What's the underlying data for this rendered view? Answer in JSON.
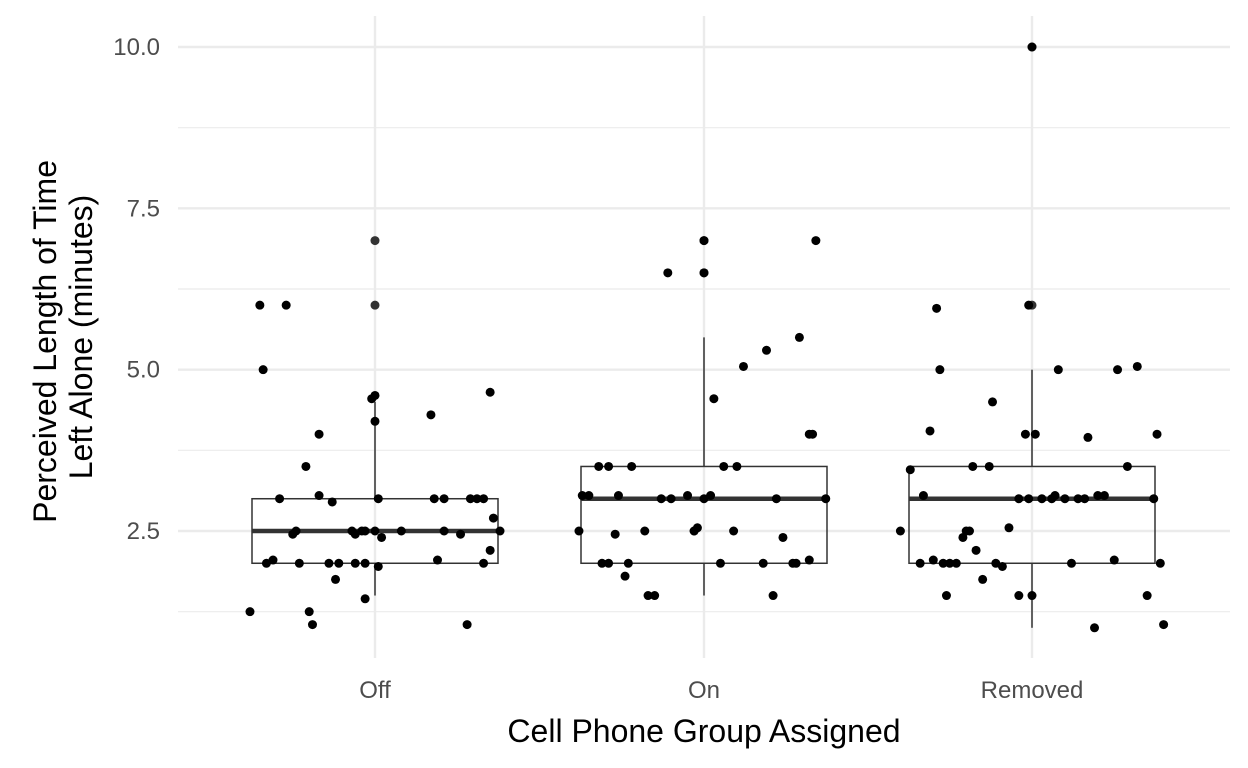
{
  "chart_data": {
    "type": "boxplot",
    "xlabel": "Cell Phone Group Assigned",
    "ylabel_lines": [
      "Perceived Length of Time",
      "Left Alone (minutes)"
    ],
    "ylim": [
      0.9,
      10.5
    ],
    "yticks": [
      2.5,
      5.0,
      7.5,
      10.0
    ],
    "ytick_labels": [
      "2.5",
      "5.0",
      "7.5",
      "10.0"
    ],
    "grid": true,
    "categories": [
      "Off",
      "On",
      "Removed"
    ],
    "boxes": [
      {
        "category": "Off",
        "whisker_low": 1.5,
        "q1": 2.0,
        "median": 2.5,
        "q3": 3.0,
        "whisker_high": 4.5
      },
      {
        "category": "On",
        "whisker_low": 1.5,
        "q1": 2.0,
        "median": 3.0,
        "q3": 3.5,
        "whisker_high": 5.5
      },
      {
        "category": "Removed",
        "whisker_low": 1.0,
        "q1": 2.0,
        "median": 3.0,
        "q3": 3.5,
        "whisker_high": 5.0
      }
    ],
    "outliers": [
      {
        "category": "Off",
        "values": [
          6.0,
          7.0
        ]
      },
      {
        "category": "On",
        "values": [
          6.5,
          7.0
        ]
      },
      {
        "category": "Removed",
        "values": [
          6.0,
          10.0
        ]
      }
    ],
    "points": [
      {
        "category": "Off",
        "jitter": [
          -0.38,
          -0.35,
          -0.27,
          -0.29,
          -0.24,
          -0.25,
          -0.34,
          -0.33,
          -0.31,
          -0.17,
          -0.2,
          -0.21,
          -0.23,
          -0.19,
          -0.17,
          -0.13,
          -0.14,
          -0.12,
          -0.07,
          -0.11,
          -0.06,
          -0.06,
          -0.04,
          -0.03,
          0.0,
          0.01,
          0.01,
          0.0,
          -0.01,
          -0.03,
          -0.03,
          0.0,
          0.02,
          0.08,
          0.17,
          0.21,
          0.21,
          0.28,
          0.26,
          0.31,
          0.33,
          0.35,
          0.33,
          0.36,
          0.35,
          0.38,
          0.29,
          0.19,
          0.18
        ],
        "values": [
          1.25,
          6.0,
          6.0,
          3.0,
          2.5,
          2.45,
          5.0,
          2.0,
          2.05,
          3.05,
          1.25,
          3.5,
          2.0,
          1.05,
          4.0,
          2.95,
          2.0,
          1.75,
          2.5,
          2.0,
          2.45,
          2.0,
          2.5,
          1.45,
          2.5,
          1.95,
          3.0,
          4.6,
          4.55,
          2.5,
          2.0,
          4.2,
          2.4,
          2.5,
          4.3,
          3.0,
          2.5,
          1.05,
          2.45,
          3.0,
          3.0,
          2.2,
          2.0,
          2.7,
          4.65,
          2.5,
          3.0,
          2.05,
          3.0
        ]
      },
      {
        "category": "On",
        "jitter": [
          -0.38,
          -0.35,
          -0.37,
          -0.32,
          -0.29,
          -0.31,
          -0.29,
          -0.27,
          -0.26,
          -0.24,
          -0.23,
          -0.22,
          -0.18,
          -0.17,
          -0.15,
          -0.13,
          -0.11,
          -0.1,
          -0.05,
          -0.03,
          -0.02,
          -0.03,
          0.0,
          0.0,
          0.0,
          0.03,
          0.02,
          0.05,
          0.06,
          0.09,
          0.1,
          0.12,
          0.18,
          0.19,
          0.22,
          0.24,
          0.21,
          0.27,
          0.28,
          0.29,
          0.32,
          0.33,
          0.32,
          0.34,
          0.37
        ],
        "values": [
          2.5,
          3.05,
          3.05,
          3.5,
          3.5,
          2.0,
          2.0,
          2.45,
          3.05,
          1.8,
          2.0,
          3.5,
          2.5,
          1.5,
          1.5,
          3.0,
          6.5,
          3.0,
          3.05,
          2.5,
          2.55,
          2.5,
          3.0,
          6.5,
          7.0,
          4.55,
          3.05,
          2.0,
          3.5,
          2.5,
          3.5,
          5.05,
          2.0,
          5.3,
          3.0,
          2.4,
          1.5,
          2.0,
          2.0,
          5.5,
          4.0,
          4.0,
          2.05,
          7.0,
          3.0
        ]
      },
      {
        "category": "Removed",
        "jitter": [
          -0.4,
          -0.37,
          -0.34,
          -0.33,
          -0.31,
          -0.3,
          -0.29,
          -0.28,
          -0.27,
          -0.25,
          -0.26,
          -0.23,
          -0.21,
          -0.2,
          -0.18,
          -0.19,
          -0.17,
          -0.15,
          -0.13,
          -0.12,
          -0.11,
          -0.09,
          -0.07,
          -0.04,
          -0.04,
          -0.02,
          -0.01,
          -0.01,
          0.0,
          0.01,
          0.0,
          0.03,
          0.06,
          0.07,
          0.08,
          0.1,
          0.12,
          0.14,
          0.16,
          0.17,
          0.19,
          0.2,
          0.22,
          0.25,
          0.26,
          0.29,
          0.32,
          0.35,
          0.38,
          0.39,
          0.4,
          0.37
        ],
        "values": [
          2.5,
          3.45,
          2.0,
          3.05,
          4.05,
          2.05,
          5.95,
          5.0,
          2.0,
          2.0,
          1.5,
          2.0,
          2.4,
          2.5,
          3.5,
          2.5,
          2.2,
          1.75,
          3.5,
          4.5,
          2.0,
          1.95,
          2.55,
          3.0,
          1.5,
          4.0,
          6.0,
          3.0,
          1.5,
          4.0,
          10.0,
          3.0,
          3.0,
          3.05,
          5.0,
          3.0,
          2.0,
          3.0,
          3.0,
          3.95,
          1.0,
          3.05,
          3.05,
          2.05,
          5.0,
          3.5,
          5.05,
          1.5,
          4.0,
          2.0,
          1.05,
          3.0
        ]
      }
    ]
  },
  "colors": {
    "grid": "#ebebeb",
    "box_stroke": "#333333",
    "point": "#000000",
    "outlier": "#333333",
    "tick_label": "#4d4d4d",
    "axis_title": "#000000"
  }
}
